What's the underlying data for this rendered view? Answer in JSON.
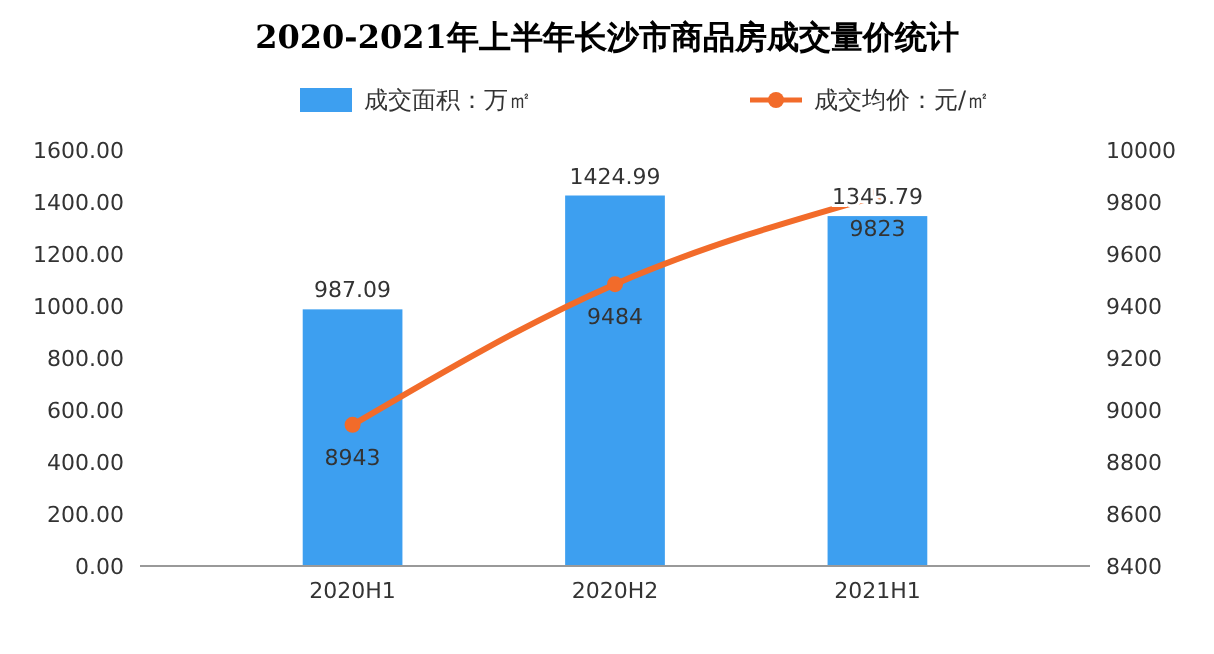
{
  "chart_data": {
    "type": "bar",
    "title": "2020-2021年上半年长沙市商品房成交量价统计",
    "categories": [
      "2020H1",
      "2020H2",
      "2021H1"
    ],
    "series": [
      {
        "name": "成交面积：万㎡",
        "color": "#3d9ff0",
        "values": [
          987.09,
          1424.99,
          1345.79
        ]
      },
      {
        "name": "成交均价：元/㎡",
        "type": "line",
        "axis": "y2",
        "color": "#f26b2a",
        "values": [
          8943,
          9484,
          9823
        ]
      }
    ],
    "ylim": [
      0,
      1600
    ],
    "yticks": [
      {
        "value": 0,
        "label": "0.00"
      },
      {
        "value": 200,
        "label": "200.00"
      },
      {
        "value": 400,
        "label": "400.00"
      },
      {
        "value": 600,
        "label": "600.00"
      },
      {
        "value": 800,
        "label": "800.00"
      },
      {
        "value": 1000,
        "label": "1000.00"
      },
      {
        "value": 1200,
        "label": "1200.00"
      },
      {
        "value": 1400,
        "label": "1400.00"
      },
      {
        "value": 1600,
        "label": "1600.00"
      }
    ],
    "y2lim": [
      8400,
      10000
    ],
    "y2ticks": [
      8400,
      8600,
      8800,
      9000,
      9200,
      9400,
      9600,
      9800,
      10000
    ],
    "data_labels": true,
    "legend": "top",
    "marker": "circle"
  }
}
